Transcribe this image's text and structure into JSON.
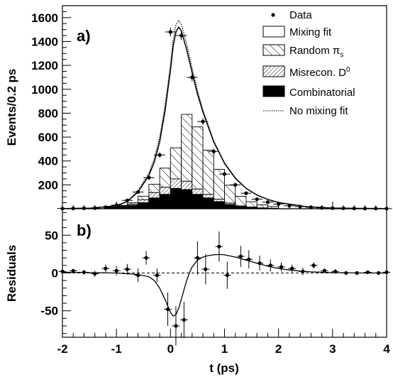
{
  "chart_data": [
    {
      "type": "line",
      "panel_label": "a)",
      "ylabel": "Events/0.2 ps",
      "xlim": [
        -2,
        4
      ],
      "ylim": [
        0,
        1700
      ],
      "yticks": [
        200,
        400,
        600,
        800,
        1000,
        1200,
        1400,
        1600
      ],
      "legend": {
        "placement": "top-right",
        "entries": [
          {
            "label": "Data",
            "style": "point"
          },
          {
            "label": "Mixing fit",
            "style": "open-box"
          },
          {
            "label": "Random π",
            "sub": "s",
            "style": "hatch-coarse"
          },
          {
            "label": "Misrecon. D",
            "sup": "0",
            "style": "hatch-fine"
          },
          {
            "label": "Combinatorial",
            "style": "solid"
          },
          {
            "label": "No mixing fit",
            "style": "dotted"
          }
        ]
      },
      "data_points": {
        "x": [
          -2.0,
          -1.8,
          -1.6,
          -1.4,
          -1.2,
          -1.0,
          -0.8,
          -0.6,
          -0.4,
          -0.2,
          0.0,
          0.2,
          0.4,
          0.6,
          0.8,
          1.0,
          1.2,
          1.4,
          1.6,
          1.8,
          2.0,
          2.2,
          2.4,
          2.6,
          2.8,
          3.0,
          3.2,
          3.4,
          3.6,
          3.8,
          4.0
        ],
        "y": [
          2,
          3,
          4,
          6,
          12,
          30,
          70,
          140,
          260,
          450,
          1480,
          1450,
          1100,
          730,
          480,
          290,
          200,
          130,
          80,
          55,
          40,
          25,
          18,
          12,
          8,
          5,
          4,
          3,
          2,
          2,
          1
        ],
        "yerr": [
          2,
          2,
          2,
          3,
          4,
          6,
          9,
          12,
          16,
          21,
          38,
          38,
          33,
          27,
          22,
          17,
          14,
          11,
          9,
          7,
          6,
          5,
          4,
          4,
          3,
          2,
          2,
          2,
          1,
          1,
          1
        ]
      },
      "mixing_fit": {
        "x": [
          -2.0,
          -1.5,
          -1.0,
          -0.8,
          -0.6,
          -0.4,
          -0.3,
          -0.2,
          -0.1,
          0.0,
          0.05,
          0.1,
          0.15,
          0.2,
          0.3,
          0.4,
          0.5,
          0.6,
          0.8,
          1.0,
          1.2,
          1.4,
          1.6,
          1.8,
          2.0,
          2.5,
          3.0,
          3.5,
          4.0
        ],
        "y": [
          2,
          4,
          25,
          60,
          140,
          280,
          390,
          560,
          820,
          1160,
          1360,
          1480,
          1520,
          1490,
          1330,
          1140,
          960,
          810,
          560,
          380,
          255,
          170,
          115,
          78,
          52,
          18,
          6,
          3,
          1
        ]
      },
      "no_mixing_fit": {
        "x": [
          -2.0,
          -1.5,
          -1.0,
          -0.8,
          -0.6,
          -0.4,
          -0.3,
          -0.2,
          -0.1,
          0.0,
          0.05,
          0.1,
          0.15,
          0.2,
          0.3,
          0.4,
          0.5,
          0.6,
          0.8,
          1.0,
          1.2,
          1.4,
          1.6,
          1.8,
          2.0,
          2.5,
          3.0,
          3.5,
          4.0
        ],
        "y": [
          2,
          4,
          27,
          64,
          150,
          300,
          420,
          600,
          870,
          1210,
          1420,
          1540,
          1575,
          1545,
          1380,
          1180,
          990,
          830,
          570,
          385,
          260,
          172,
          116,
          79,
          53,
          18,
          6,
          3,
          1
        ]
      },
      "hist_edges": [
        -1.2,
        -1.0,
        -0.8,
        -0.6,
        -0.4,
        -0.2,
        0.0,
        0.2,
        0.4,
        0.6,
        0.8,
        1.0,
        1.2,
        1.4,
        1.6,
        1.8,
        2.0
      ],
      "random_pis": [
        3,
        6,
        12,
        30,
        70,
        160,
        260,
        560,
        520,
        370,
        250,
        150,
        80,
        45,
        25,
        15
      ],
      "misrecon_d0": [
        2,
        4,
        10,
        25,
        45,
        60,
        80,
        70,
        45,
        30,
        20,
        12,
        6,
        4,
        2,
        1
      ],
      "combinatorial": [
        10,
        18,
        28,
        50,
        90,
        120,
        170,
        160,
        120,
        90,
        60,
        35,
        18,
        10,
        5,
        3
      ]
    },
    {
      "type": "line",
      "panel_label": "b)",
      "ylabel": "Residuals",
      "xlabel": "t (ps)",
      "xlim": [
        -2,
        4
      ],
      "ylim": [
        -85,
        85
      ],
      "yticks": [
        -50,
        0,
        50
      ],
      "xticks": [
        -2,
        -1,
        0,
        1,
        2,
        3,
        4
      ],
      "residuals": {
        "x": [
          -2.0,
          -1.8,
          -1.6,
          -1.4,
          -1.2,
          -1.0,
          -0.8,
          -0.6,
          -0.45,
          -0.25,
          -0.05,
          0.1,
          0.25,
          0.5,
          0.65,
          0.9,
          1.05,
          1.3,
          1.45,
          1.65,
          1.85,
          2.05,
          2.25,
          2.45,
          2.65,
          2.85,
          3.05,
          3.25,
          3.45,
          3.65,
          3.85,
          4.0
        ],
        "y": [
          2,
          3,
          1,
          -1,
          6,
          3,
          5,
          -3,
          20,
          -3,
          -48,
          -70,
          -62,
          20,
          5,
          35,
          -3,
          22,
          18,
          13,
          10,
          8,
          6,
          2,
          10,
          3,
          2,
          0,
          0,
          1,
          0,
          1
        ],
        "yerr": [
          2,
          2,
          3,
          4,
          5,
          6,
          7,
          9,
          9,
          9,
          22,
          26,
          24,
          22,
          20,
          20,
          18,
          14,
          12,
          10,
          8,
          6,
          5,
          5,
          4,
          3,
          3,
          2,
          2,
          2,
          2,
          2
        ]
      },
      "fit_curve": {
        "x": [
          -2.0,
          -1.0,
          -0.6,
          -0.4,
          -0.3,
          -0.2,
          -0.1,
          0.0,
          0.05,
          0.1,
          0.15,
          0.2,
          0.25,
          0.3,
          0.35,
          0.4,
          0.5,
          0.6,
          0.7,
          0.8,
          0.9,
          1.0,
          1.2,
          1.4,
          1.6,
          1.8,
          2.0,
          2.2,
          2.4,
          2.6,
          2.8,
          3.0,
          3.5,
          4.0
        ],
        "y": [
          1,
          0,
          -2,
          -5,
          -10,
          -20,
          -35,
          -52,
          -57,
          -55,
          -47,
          -35,
          -22,
          -10,
          0,
          8,
          17,
          21,
          23,
          24,
          24.5,
          24,
          21,
          17,
          13,
          9,
          6,
          4,
          2.5,
          1.5,
          1,
          0.5,
          0,
          0
        ]
      },
      "zero_line": {
        "style": "dashed",
        "value": 0
      }
    }
  ]
}
